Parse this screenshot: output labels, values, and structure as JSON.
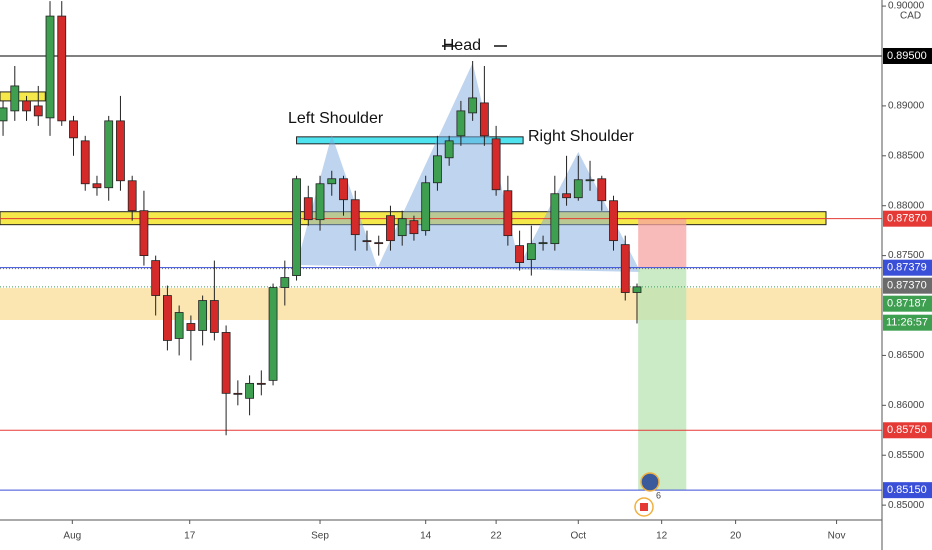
{
  "chart_data": {
    "type": "candlestick",
    "currency": "CAD",
    "xlim": [
      -0.26,
      74.87
    ],
    "ylim": [
      0.84851,
      0.90061
    ],
    "xticks": [
      {
        "value": 5.9,
        "label": "Aug"
      },
      {
        "value": 15.9,
        "label": "17"
      },
      {
        "value": 27,
        "label": "Sep"
      },
      {
        "value": 36,
        "label": "14"
      },
      {
        "value": 42,
        "label": "22"
      },
      {
        "value": 49,
        "label": "Oct"
      },
      {
        "value": 56.1,
        "label": "12"
      },
      {
        "value": 62.4,
        "label": "20"
      },
      {
        "value": 71,
        "label": "Nov"
      }
    ],
    "yticks": [
      {
        "value": 0.9,
        "label": "0.90000"
      },
      {
        "value": 0.89,
        "label": "0.89000"
      },
      {
        "value": 0.885,
        "label": "0.88500"
      },
      {
        "value": 0.88,
        "label": "0.88000"
      },
      {
        "value": 0.875,
        "label": "0.87500"
      },
      {
        "value": 0.865,
        "label": "0.86500"
      },
      {
        "value": 0.86,
        "label": "0.86000"
      },
      {
        "value": 0.855,
        "label": "0.85500"
      },
      {
        "value": 0.85,
        "label": "0.85000"
      }
    ],
    "up_color": "#3d9f4f",
    "down_color": "#d42a2a",
    "open": [
      0.8885,
      0.8895,
      0.8905,
      0.89,
      0.8888,
      0.899,
      0.8885,
      0.8865,
      0.8822,
      0.8818,
      0.8885,
      0.8825,
      0.8795,
      0.8745,
      0.871,
      0.8667,
      0.8682,
      0.8675,
      0.8705,
      0.8673,
      0.8612,
      0.8607,
      0.8622,
      0.8625,
      0.8718,
      0.873,
      0.8808,
      0.8786,
      0.8822,
      0.8827,
      0.8806,
      0.8765,
      0.8763,
      0.879,
      0.877,
      0.8785,
      0.8775,
      0.8823,
      0.8848,
      0.887,
      0.8893,
      0.8903,
      0.8867,
      0.8815,
      0.876,
      0.8746,
      0.8762,
      0.8762,
      0.8812,
      0.8808,
      0.8825,
      0.8827,
      0.8805,
      0.8761,
      0.8713
    ],
    "high": [
      0.8905,
      0.894,
      0.891,
      0.892,
      0.9005,
      0.9005,
      0.889,
      0.887,
      0.883,
      0.889,
      0.891,
      0.883,
      0.8815,
      0.875,
      0.872,
      0.87,
      0.869,
      0.871,
      0.8745,
      0.868,
      0.8625,
      0.863,
      0.8635,
      0.8722,
      0.8745,
      0.883,
      0.882,
      0.883,
      0.8835,
      0.883,
      0.8815,
      0.8775,
      0.877,
      0.88,
      0.8795,
      0.879,
      0.883,
      0.887,
      0.887,
      0.8905,
      0.8945,
      0.894,
      0.888,
      0.883,
      0.8775,
      0.878,
      0.877,
      0.883,
      0.885,
      0.885,
      0.8845,
      0.883,
      0.881,
      0.877,
      0.8722
    ],
    "low": [
      0.887,
      0.8885,
      0.8885,
      0.888,
      0.887,
      0.888,
      0.885,
      0.8815,
      0.881,
      0.8805,
      0.8815,
      0.8785,
      0.874,
      0.869,
      0.8655,
      0.865,
      0.8645,
      0.866,
      0.8665,
      0.857,
      0.86,
      0.859,
      0.861,
      0.862,
      0.87,
      0.8725,
      0.878,
      0.8775,
      0.881,
      0.879,
      0.8755,
      0.8755,
      0.875,
      0.8755,
      0.876,
      0.8765,
      0.877,
      0.8815,
      0.884,
      0.886,
      0.8885,
      0.886,
      0.881,
      0.876,
      0.8735,
      0.873,
      0.8755,
      0.8755,
      0.88,
      0.8805,
      0.8815,
      0.8795,
      0.8755,
      0.8705,
      0.8682
    ],
    "close": [
      0.8898,
      0.892,
      0.8895,
      0.889,
      0.899,
      0.8885,
      0.8868,
      0.8822,
      0.8818,
      0.8885,
      0.8825,
      0.8795,
      0.875,
      0.871,
      0.8665,
      0.8693,
      0.8675,
      0.8705,
      0.8673,
      0.8612,
      0.8611,
      0.8622,
      0.8621,
      0.8718,
      0.8728,
      0.8827,
      0.8786,
      0.8822,
      0.8827,
      0.8806,
      0.8771,
      0.8764,
      0.8762,
      0.8765,
      0.8787,
      0.8772,
      0.8823,
      0.885,
      0.8865,
      0.8895,
      0.8908,
      0.887,
      0.8816,
      0.877,
      0.8743,
      0.8762,
      0.8763,
      0.8812,
      0.8808,
      0.8826,
      0.8826,
      0.8805,
      0.8765,
      0.8713,
      0.87187
    ],
    "levels": [
      {
        "value": 0.895,
        "label": "0.89500",
        "color": "#000000"
      },
      {
        "value": 0.8787,
        "label": "0.87870",
        "color": "#e53935"
      },
      {
        "value": 0.87379,
        "label": "0.87379",
        "color": "#3a4fd8"
      },
      {
        "value": 0.8737,
        "label": "0.87370",
        "color": "#6b6b6b"
      },
      {
        "value": 0.87187,
        "label": "0.87187",
        "color": "#3d9f4f"
      },
      {
        "value": 0.8575,
        "label": "0.85750",
        "color": "#e53935"
      },
      {
        "value": 0.8515,
        "label": "0.85150",
        "color": "#3a4fd8"
      }
    ],
    "countdown": "11:26:57",
    "zones": [
      {
        "x": [
          -0.26,
          3.6
        ],
        "y": [
          0.8905,
          0.8914
        ],
        "color": "#f5e84a"
      },
      {
        "x": [
          -0.26,
          70.1
        ],
        "y": [
          0.8781,
          0.8794
        ],
        "color": "#f5e84a"
      },
      {
        "x": [
          -0.26,
          74.87
        ],
        "y": [
          0.86855,
          0.87175
        ],
        "color": "#fbe3a8"
      },
      {
        "x": [
          25.0,
          44.3
        ],
        "y": [
          0.8862,
          0.8869
        ],
        "color": "#4fe3f0"
      }
    ],
    "pattern": {
      "x": [
        25.0,
        28.0,
        31.9,
        40.0,
        44.0,
        49.0,
        54.3
      ],
      "y": [
        0.87406,
        0.88708,
        0.87376,
        0.8943,
        0.87406,
        0.88538,
        0.87336
      ]
    },
    "position": {
      "x": [
        54.1,
        58.2
      ],
      "stop": 0.8787,
      "entry": 0.87379,
      "target": 0.8515
    },
    "annotations": [
      "Head",
      "Left Shoulder",
      "Right Shoulder"
    ],
    "event_count": "6"
  }
}
